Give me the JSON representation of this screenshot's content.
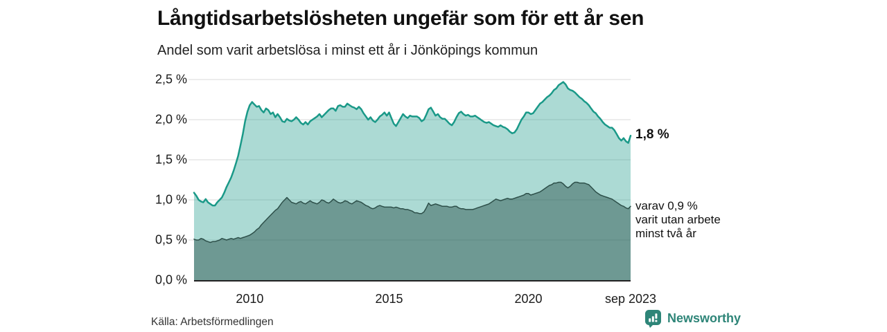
{
  "header": {
    "title": "Långtidsarbetslösheten ungefär som för ett år sen",
    "subtitle": "Andel som varit arbetslösa i minst ett år i Jönköpings kommun"
  },
  "chart_data": {
    "type": "area",
    "title": "Långtidsarbetslösheten ungefär som för ett år sen",
    "subtitle": "Andel som varit arbetslösa i minst ett år i Jönköpings kommun",
    "unit": "%",
    "frequency": "monthly",
    "x_start": 2008.0,
    "x_end": 2023.6667,
    "x_first_label": "2008-01",
    "x_last_label": "sep 2023",
    "ylim": [
      0,
      2.5
    ],
    "y_ticks": [
      0.0,
      0.5,
      1.0,
      1.5,
      2.0,
      2.5
    ],
    "y_tick_labels": [
      "0,0 %",
      "0,5 %",
      "1,0 %",
      "1,5 %",
      "2,0 %",
      "2,5 %"
    ],
    "x_tick_positions": [
      2010,
      2015,
      2020,
      2023.6667
    ],
    "x_tick_labels": [
      "2010",
      "2015",
      "2020",
      "sep 2023"
    ],
    "grid": true,
    "legend_position": "end-labels",
    "series": [
      {
        "name": "Andel arbetslösa minst ett år",
        "end_label": "1,8 %",
        "line_color": "#1a9988",
        "fill_color": "rgba(26,153,136,0.36)",
        "line_width": 2.5,
        "values": [
          1.09,
          1.05,
          1.0,
          0.98,
          0.97,
          1.01,
          0.97,
          0.95,
          0.93,
          0.93,
          0.97,
          1.0,
          1.03,
          1.09,
          1.16,
          1.22,
          1.28,
          1.36,
          1.45,
          1.55,
          1.68,
          1.82,
          1.98,
          2.1,
          2.18,
          2.22,
          2.19,
          2.16,
          2.17,
          2.12,
          2.09,
          2.14,
          2.12,
          2.07,
          2.09,
          2.03,
          2.07,
          2.03,
          1.98,
          1.97,
          2.01,
          1.99,
          1.98,
          2.0,
          2.03,
          2.0,
          1.96,
          1.94,
          1.97,
          1.94,
          1.98,
          2.0,
          2.02,
          2.04,
          2.07,
          2.03,
          2.06,
          2.09,
          2.12,
          2.14,
          2.14,
          2.11,
          2.17,
          2.18,
          2.16,
          2.16,
          2.2,
          2.18,
          2.16,
          2.15,
          2.13,
          2.16,
          2.13,
          2.08,
          2.04,
          2.0,
          2.03,
          1.99,
          1.97,
          2.0,
          2.04,
          2.06,
          2.09,
          2.05,
          2.09,
          2.02,
          1.95,
          1.92,
          1.97,
          2.02,
          2.07,
          2.04,
          2.02,
          2.05,
          2.04,
          2.04,
          2.04,
          2.02,
          1.98,
          2.0,
          2.06,
          2.13,
          2.15,
          2.1,
          2.05,
          2.07,
          2.03,
          2.01,
          2.01,
          1.98,
          1.95,
          1.93,
          1.97,
          2.03,
          2.08,
          2.1,
          2.07,
          2.05,
          2.06,
          2.04,
          2.04,
          2.05,
          2.03,
          2.01,
          1.99,
          1.97,
          1.96,
          1.97,
          1.95,
          1.93,
          1.92,
          1.91,
          1.93,
          1.91,
          1.9,
          1.88,
          1.85,
          1.83,
          1.84,
          1.88,
          1.94,
          2.0,
          2.04,
          2.09,
          2.09,
          2.07,
          2.08,
          2.12,
          2.16,
          2.2,
          2.22,
          2.25,
          2.28,
          2.3,
          2.33,
          2.37,
          2.39,
          2.43,
          2.45,
          2.47,
          2.44,
          2.39,
          2.37,
          2.36,
          2.34,
          2.31,
          2.28,
          2.26,
          2.23,
          2.21,
          2.18,
          2.14,
          2.1,
          2.08,
          2.04,
          2.01,
          1.97,
          1.94,
          1.92,
          1.9,
          1.9,
          1.87,
          1.82,
          1.77,
          1.74,
          1.77,
          1.73,
          1.71,
          1.8
        ]
      },
      {
        "name": "varav utan arbete minst två år",
        "end_label": "varav 0,9 % varit utan arbete minst två år",
        "line_color": "#2d4f49",
        "fill_color": "rgba(35,74,68,0.45)",
        "line_width": 1.5,
        "values": [
          0.51,
          0.5,
          0.5,
          0.52,
          0.51,
          0.49,
          0.48,
          0.47,
          0.48,
          0.48,
          0.49,
          0.5,
          0.52,
          0.51,
          0.5,
          0.51,
          0.52,
          0.51,
          0.52,
          0.53,
          0.52,
          0.53,
          0.54,
          0.55,
          0.56,
          0.58,
          0.6,
          0.63,
          0.65,
          0.69,
          0.72,
          0.75,
          0.78,
          0.81,
          0.84,
          0.87,
          0.89,
          0.93,
          0.97,
          1.0,
          1.03,
          1.0,
          0.97,
          0.96,
          0.95,
          0.97,
          0.98,
          0.96,
          0.95,
          0.97,
          0.99,
          0.97,
          0.96,
          0.95,
          0.97,
          1.0,
          0.99,
          0.97,
          0.96,
          0.98,
          1.01,
          0.99,
          0.97,
          0.96,
          0.97,
          0.99,
          0.98,
          0.96,
          0.95,
          0.97,
          0.99,
          0.98,
          0.97,
          0.95,
          0.93,
          0.92,
          0.9,
          0.89,
          0.9,
          0.92,
          0.93,
          0.92,
          0.91,
          0.91,
          0.91,
          0.91,
          0.9,
          0.91,
          0.9,
          0.89,
          0.89,
          0.88,
          0.88,
          0.87,
          0.86,
          0.84,
          0.84,
          0.83,
          0.83,
          0.85,
          0.9,
          0.96,
          0.93,
          0.94,
          0.95,
          0.94,
          0.93,
          0.92,
          0.92,
          0.92,
          0.91,
          0.91,
          0.92,
          0.92,
          0.9,
          0.89,
          0.89,
          0.88,
          0.88,
          0.88,
          0.88,
          0.89,
          0.9,
          0.91,
          0.92,
          0.93,
          0.94,
          0.95,
          0.97,
          0.99,
          1.01,
          1.0,
          0.99,
          1.0,
          1.01,
          1.02,
          1.01,
          1.01,
          1.02,
          1.03,
          1.04,
          1.05,
          1.06,
          1.08,
          1.08,
          1.06,
          1.07,
          1.08,
          1.09,
          1.1,
          1.12,
          1.14,
          1.16,
          1.18,
          1.19,
          1.21,
          1.21,
          1.22,
          1.22,
          1.2,
          1.17,
          1.15,
          1.17,
          1.2,
          1.22,
          1.22,
          1.21,
          1.21,
          1.21,
          1.2,
          1.19,
          1.16,
          1.13,
          1.1,
          1.08,
          1.06,
          1.05,
          1.04,
          1.03,
          1.02,
          1.01,
          0.99,
          0.97,
          0.95,
          0.93,
          0.92,
          0.9,
          0.89,
          0.92
        ]
      }
    ]
  },
  "annotations": {
    "value_main": "1,8 %",
    "value_sub_line1": "varav 0,9 %",
    "value_sub_line2": "varit utan arbete",
    "value_sub_line3": "minst två år"
  },
  "footer": {
    "source": "Källa: Arbetsförmedlingen",
    "brand": "Newsworthy"
  },
  "colors": {
    "line_main": "#1a9988",
    "fill_main": "rgba(26,153,136,0.36)",
    "line_sub": "#2d4f49",
    "fill_sub": "rgba(35,74,68,0.45)",
    "grid": "#d8d8d8",
    "axis": "#222222",
    "brand_teal": "#2e8578",
    "text": "#111111"
  }
}
